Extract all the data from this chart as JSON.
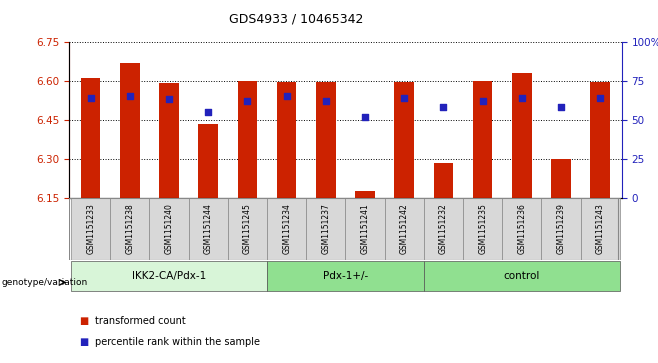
{
  "title": "GDS4933 / 10465342",
  "samples": [
    "GSM1151233",
    "GSM1151238",
    "GSM1151240",
    "GSM1151244",
    "GSM1151245",
    "GSM1151234",
    "GSM1151237",
    "GSM1151241",
    "GSM1151242",
    "GSM1151232",
    "GSM1151235",
    "GSM1151236",
    "GSM1151239",
    "GSM1151243"
  ],
  "bar_values": [
    6.61,
    6.67,
    6.59,
    6.435,
    6.6,
    6.595,
    6.595,
    6.175,
    6.595,
    6.285,
    6.6,
    6.63,
    6.3,
    6.595
  ],
  "percentile_values": [
    64,
    65,
    63,
    55,
    62,
    65,
    62,
    52,
    64,
    58,
    62,
    64,
    58,
    64
  ],
  "ylim_left": [
    6.15,
    6.75
  ],
  "ylim_right": [
    0,
    100
  ],
  "yticks_left": [
    6.15,
    6.3,
    6.45,
    6.6,
    6.75
  ],
  "yticks_right": [
    0,
    25,
    50,
    75,
    100
  ],
  "ytick_labels_right": [
    "0",
    "25",
    "50",
    "75",
    "100%"
  ],
  "bar_color": "#cc2200",
  "dot_color": "#2222bb",
  "bar_bottom": 6.15,
  "groups": [
    {
      "label": "IKK2-CA/Pdx-1",
      "start": 0,
      "end": 5,
      "color": "#d8f5d8"
    },
    {
      "label": "Pdx-1+/-",
      "start": 5,
      "end": 9,
      "color": "#90e090"
    },
    {
      "label": "control",
      "start": 9,
      "end": 14,
      "color": "#90e090"
    }
  ],
  "legend_items": [
    {
      "label": "transformed count",
      "color": "#cc2200"
    },
    {
      "label": "percentile rank within the sample",
      "color": "#2222bb"
    }
  ],
  "plot_bg": "#ffffff",
  "sample_bg": "#d8d8d8",
  "bar_width": 0.5
}
